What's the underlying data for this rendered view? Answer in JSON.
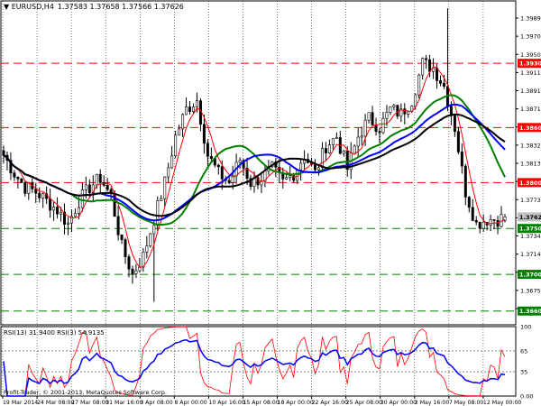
{
  "header": {
    "symbol_label": "EURUSD,H4",
    "ohlc_label": "1.37583 1.37658 1.37566 1.37626"
  },
  "rsi_panel": {
    "label": "RSI(13) 31.9400  RSI(3) 54.9135",
    "copyright": "Profit-Trader, © 2001-2013, MetaQuotes Software Corp."
  },
  "colors": {
    "background": "#ffffff",
    "candle": "#000000",
    "ma_fast": "#ff0000",
    "ma_green": "#008000",
    "ma_blue": "#0000ff",
    "ma_black": "#000000",
    "resistance_line": "#ff0000",
    "support_line": "#008000",
    "resistance_tag": "#ff0000",
    "support_tag": "#008000",
    "current_tag": "#c0c0c0"
  },
  "price_axis": {
    "ticks": [
      "1.39895",
      "1.39700",
      "1.39505",
      "1.39110",
      "1.38915",
      "1.38710",
      "1.38520",
      "1.38325",
      "1.38130",
      "1.37930",
      "1.37730",
      "1.37535",
      "1.37340",
      "1.37145",
      "1.36950",
      "1.36755",
      "1.36560"
    ]
  },
  "tagged_levels": [
    {
      "label": "1.39300",
      "value": 1.393,
      "kind": "resistance"
    },
    {
      "label": "1.38600",
      "value": 1.386,
      "kind": "resistance"
    },
    {
      "label": "1.38000",
      "value": 1.38,
      "kind": "resistance"
    },
    {
      "label": "1.37626",
      "value": 1.37626,
      "kind": "current"
    },
    {
      "label": "1.37500",
      "value": 1.375,
      "kind": "support"
    },
    {
      "label": "1.37000",
      "value": 1.37,
      "kind": "support"
    },
    {
      "label": "1.36600",
      "value": 1.366,
      "kind": "support"
    }
  ],
  "rsi_axis": {
    "ticks": [
      "100",
      "65",
      "35",
      "0.00"
    ],
    "dashed_levels": [
      65,
      35
    ]
  },
  "time_axis": {
    "labels": [
      "19 Mar 2014",
      "24 Mar 08:00",
      "27 Mar 08:00",
      "31 Mar 16:00",
      "3 Apr 08:00",
      "8 Apr 00:00",
      "10 Apr 16:00",
      "15 Apr 08:00",
      "18 Apr 00:00",
      "22 Apr 16:00",
      "25 Apr 08:00",
      "30 Apr 00:00",
      "2 May 16:00",
      "7 May 08:00",
      "12 May 00:00"
    ]
  },
  "chart_data": {
    "type": "candlestick",
    "symbol": "EURUSD",
    "timeframe": "H4",
    "last_bar": {
      "open": 1.37583,
      "high": 1.37658,
      "low": 1.37566,
      "close": 1.37626
    },
    "y_range": [
      1.3645,
      1.3998
    ],
    "anchors": [
      {
        "i": 0,
        "v": 1.383
      },
      {
        "i": 3,
        "v": 1.381
      },
      {
        "i": 6,
        "v": 1.3795
      },
      {
        "i": 9,
        "v": 1.379
      },
      {
        "i": 12,
        "v": 1.378
      },
      {
        "i": 15,
        "v": 1.377
      },
      {
        "i": 18,
        "v": 1.3755
      },
      {
        "i": 21,
        "v": 1.378
      },
      {
        "i": 24,
        "v": 1.3795
      },
      {
        "i": 27,
        "v": 1.3805
      },
      {
        "i": 30,
        "v": 1.3785
      },
      {
        "i": 33,
        "v": 1.373
      },
      {
        "i": 36,
        "v": 1.37
      },
      {
        "i": 39,
        "v": 1.372
      },
      {
        "i": 42,
        "v": 1.376
      },
      {
        "i": 45,
        "v": 1.38
      },
      {
        "i": 48,
        "v": 1.385
      },
      {
        "i": 51,
        "v": 1.388
      },
      {
        "i": 54,
        "v": 1.389
      },
      {
        "i": 57,
        "v": 1.383
      },
      {
        "i": 60,
        "v": 1.381
      },
      {
        "i": 63,
        "v": 1.38
      },
      {
        "i": 66,
        "v": 1.3825
      },
      {
        "i": 69,
        "v": 1.38
      },
      {
        "i": 72,
        "v": 1.3805
      },
      {
        "i": 75,
        "v": 1.3815
      },
      {
        "i": 78,
        "v": 1.38
      },
      {
        "i": 81,
        "v": 1.381
      },
      {
        "i": 84,
        "v": 1.383
      },
      {
        "i": 87,
        "v": 1.381
      },
      {
        "i": 90,
        "v": 1.384
      },
      {
        "i": 93,
        "v": 1.385
      },
      {
        "i": 96,
        "v": 1.3815
      },
      {
        "i": 99,
        "v": 1.385
      },
      {
        "i": 102,
        "v": 1.387
      },
      {
        "i": 105,
        "v": 1.386
      },
      {
        "i": 108,
        "v": 1.388
      },
      {
        "i": 111,
        "v": 1.3875
      },
      {
        "i": 114,
        "v": 1.389
      },
      {
        "i": 117,
        "v": 1.393
      },
      {
        "i": 120,
        "v": 1.3925
      },
      {
        "i": 123,
        "v": 1.3905
      },
      {
        "i": 126,
        "v": 1.386
      },
      {
        "i": 129,
        "v": 1.379
      },
      {
        "i": 132,
        "v": 1.3755
      },
      {
        "i": 135,
        "v": 1.376
      },
      {
        "i": 138,
        "v": 1.376
      },
      {
        "i": 140,
        "v": 1.37626
      }
    ],
    "spike_high": {
      "i": 124,
      "v": 1.399
    },
    "dip_low": {
      "i": 42,
      "v": 1.367
    },
    "rsi13_range": [
      25,
      80
    ],
    "rsi3_range": [
      0,
      100
    ]
  }
}
